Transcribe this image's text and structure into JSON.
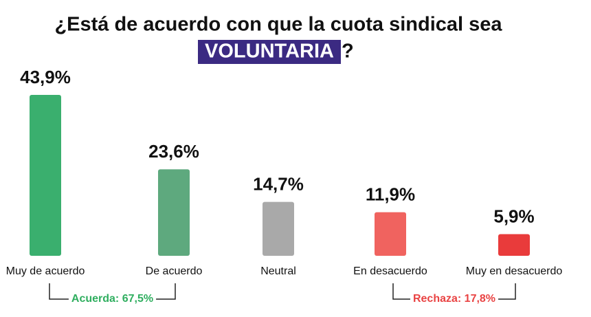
{
  "chart_data": {
    "type": "bar",
    "title": "¿Está de acuerdo con que la cuota sindical sea",
    "title_highlight": "VOLUNTARIA",
    "title_end": "?",
    "categories": [
      "Muy de acuerdo",
      "De acuerdo",
      "Neutral",
      "En desacuerdo",
      "Muy en desacuerdo"
    ],
    "values": [
      43.9,
      23.6,
      14.7,
      11.9,
      5.9
    ],
    "value_labels": [
      "43,9%",
      "23,6%",
      "14,7%",
      "11,9%",
      "5,9%"
    ],
    "colors": [
      "#3aaf6e",
      "#5ea97e",
      "#a9a9a9",
      "#f0635f",
      "#e93b3b"
    ],
    "annotations": [
      {
        "text": "Acuerda: 67,5%",
        "color": "#2fae5f"
      },
      {
        "text": "Rechaza: 17,8%",
        "color": "#e94343"
      }
    ]
  }
}
